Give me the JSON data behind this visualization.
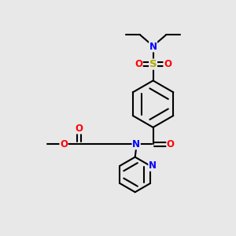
{
  "background_color": "#e8e8e8",
  "bond_color": "#000000",
  "N_color": "#0000ff",
  "O_color": "#ff0000",
  "S_color": "#aaaa00",
  "figsize": [
    3.0,
    3.0
  ],
  "dpi": 100,
  "xlim": [
    0,
    10
  ],
  "ylim": [
    0,
    10
  ],
  "lw": 1.5,
  "fs": 8.5
}
